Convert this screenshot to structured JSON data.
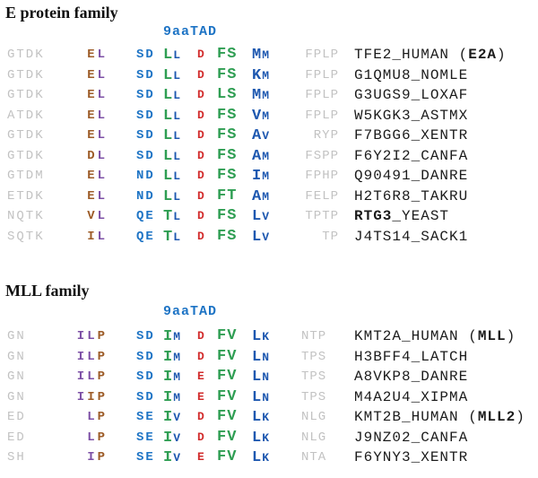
{
  "palette": {
    "gray": "#c2c2c2",
    "brown": "#9d5c28",
    "purple": "#7c4fa5",
    "blue": "#1e74c5",
    "navy": "#1e58b0",
    "green": "#2f9e53",
    "red": "#d22c2c",
    "ink": "#1b1b1b"
  },
  "sections": [
    {
      "title": "E protein family",
      "tad_label": "9aaTAD",
      "rows": [
        {
          "flank_left": "GTDK",
          "pre": [
            [
              "E",
              "brown"
            ],
            [
              "L",
              "purple"
            ]
          ],
          "polar": "SD",
          "h1": [
            "L",
            "L"
          ],
          "acid": "D",
          "h2": "FS",
          "h3": [
            "M",
            "M"
          ],
          "flank_right": "FPLP",
          "name": [
            [
              "TFE2_HUMAN (",
              false
            ],
            [
              "E2A",
              true
            ],
            [
              ")",
              false
            ]
          ]
        },
        {
          "flank_left": "GTDK",
          "pre": [
            [
              "E",
              "brown"
            ],
            [
              "L",
              "purple"
            ]
          ],
          "polar": "SD",
          "h1": [
            "L",
            "L"
          ],
          "acid": "D",
          "h2": "FS",
          "h3": [
            "K",
            "M"
          ],
          "flank_right": "FPLP",
          "name": [
            [
              "G1QMU8_NOMLE",
              false
            ]
          ]
        },
        {
          "flank_left": "GTDK",
          "pre": [
            [
              "E",
              "brown"
            ],
            [
              "L",
              "purple"
            ]
          ],
          "polar": "SD",
          "h1": [
            "L",
            "L"
          ],
          "acid": "D",
          "h2": "LS",
          "h3": [
            "M",
            "M"
          ],
          "flank_right": "FPLP",
          "name": [
            [
              "G3UGS9_LOXAF",
              false
            ]
          ]
        },
        {
          "flank_left": "ATDK",
          "pre": [
            [
              "E",
              "brown"
            ],
            [
              "L",
              "purple"
            ]
          ],
          "polar": "SD",
          "h1": [
            "L",
            "L"
          ],
          "acid": "D",
          "h2": "FS",
          "h3": [
            "V",
            "M"
          ],
          "flank_right": "FPLP",
          "name": [
            [
              "W5KGK3_ASTMX",
              false
            ]
          ]
        },
        {
          "flank_left": "GTDK",
          "pre": [
            [
              "E",
              "brown"
            ],
            [
              "L",
              "purple"
            ]
          ],
          "polar": "SD",
          "h1": [
            "L",
            "L"
          ],
          "acid": "D",
          "h2": "FS",
          "h3": [
            "A",
            "V"
          ],
          "flank_right": "RYP",
          "name": [
            [
              "F7BGG6_XENTR",
              false
            ]
          ]
        },
        {
          "flank_left": "GTDK",
          "pre": [
            [
              "D",
              "brown"
            ],
            [
              "L",
              "purple"
            ]
          ],
          "polar": "SD",
          "h1": [
            "L",
            "L"
          ],
          "acid": "D",
          "h2": "FS",
          "h3": [
            "A",
            "M"
          ],
          "flank_right": "FSPP",
          "name": [
            [
              "F6Y2I2_CANFA",
              false
            ]
          ]
        },
        {
          "flank_left": "GTDM",
          "pre": [
            [
              "E",
              "brown"
            ],
            [
              "L",
              "purple"
            ]
          ],
          "polar": "ND",
          "h1": [
            "L",
            "L"
          ],
          "acid": "D",
          "h2": "FS",
          "h3": [
            "I",
            "M"
          ],
          "flank_right": "FPHP",
          "name": [
            [
              "Q90491_DANRE",
              false
            ]
          ]
        },
        {
          "flank_left": "ETDK",
          "pre": [
            [
              "E",
              "brown"
            ],
            [
              "L",
              "purple"
            ]
          ],
          "polar": "ND",
          "h1": [
            "L",
            "L"
          ],
          "acid": "D",
          "h2": "FT",
          "h3": [
            "A",
            "M"
          ],
          "flank_right": "FELP",
          "name": [
            [
              "H2T6R8_TAKRU",
              false
            ]
          ]
        },
        {
          "flank_left": "NQTK",
          "pre": [
            [
              "V",
              "brown"
            ],
            [
              "L",
              "purple"
            ]
          ],
          "polar": "QE",
          "h1": [
            "T",
            "L"
          ],
          "acid": "D",
          "h2": "FS",
          "h3": [
            "L",
            "V"
          ],
          "flank_right": "TPTP",
          "name": [
            [
              "RTG3",
              true
            ],
            [
              "_YEAST",
              false
            ]
          ]
        },
        {
          "flank_left": "SQTK",
          "pre": [
            [
              "I",
              "brown"
            ],
            [
              "L",
              "purple"
            ]
          ],
          "polar": "QE",
          "h1": [
            "T",
            "L"
          ],
          "acid": "D",
          "h2": "FS",
          "h3": [
            "L",
            "V"
          ],
          "flank_right": "TP",
          "name": [
            [
              "J4TS14_SACK1",
              false
            ]
          ]
        }
      ]
    },
    {
      "title": "MLL family",
      "tad_label": "9aaTAD",
      "rows": [
        {
          "flank_left": "GN",
          "pre": [
            [
              "I",
              "purple"
            ],
            [
              "L",
              "purple"
            ],
            [
              "P",
              "brown"
            ]
          ],
          "polar": "SD",
          "h1": [
            "I",
            "M"
          ],
          "acid": "D",
          "h2": "FV",
          "h3": [
            "L",
            "K"
          ],
          "flank_right": "NTP",
          "name": [
            [
              "KMT2A_HUMAN (",
              false
            ],
            [
              "MLL",
              true
            ],
            [
              ")",
              false
            ]
          ]
        },
        {
          "flank_left": "GN",
          "pre": [
            [
              "I",
              "purple"
            ],
            [
              "L",
              "purple"
            ],
            [
              "P",
              "brown"
            ]
          ],
          "polar": "SD",
          "h1": [
            "I",
            "M"
          ],
          "acid": "D",
          "h2": "FV",
          "h3": [
            "L",
            "N"
          ],
          "flank_right": "TPS",
          "name": [
            [
              "H3BFF4_LATCH",
              false
            ]
          ]
        },
        {
          "flank_left": "GN",
          "pre": [
            [
              "I",
              "purple"
            ],
            [
              "L",
              "purple"
            ],
            [
              "P",
              "brown"
            ]
          ],
          "polar": "SD",
          "h1": [
            "I",
            "M"
          ],
          "acid": "E",
          "h2": "FV",
          "h3": [
            "L",
            "N"
          ],
          "flank_right": "TPS",
          "name": [
            [
              "A8VKP8_DANRE",
              false
            ]
          ]
        },
        {
          "flank_left": "GN",
          "pre": [
            [
              "I",
              "purple"
            ],
            [
              "I",
              "brown"
            ],
            [
              "P",
              "brown"
            ]
          ],
          "polar": "SD",
          "h1": [
            "I",
            "M"
          ],
          "acid": "E",
          "h2": "FV",
          "h3": [
            "L",
            "N"
          ],
          "flank_right": "TPS",
          "name": [
            [
              "M4A2U4_XIPMA",
              false
            ]
          ]
        },
        {
          "flank_left": "ED",
          "pre": [
            [
              "L",
              "purple"
            ],
            [
              "P",
              "brown"
            ]
          ],
          "polar": "SE",
          "h1": [
            "I",
            "V"
          ],
          "acid": "D",
          "h2": "FV",
          "h3": [
            "L",
            "K"
          ],
          "flank_right": "NLG",
          "name": [
            [
              "KMT2B_HUMAN (",
              false
            ],
            [
              "MLL2",
              true
            ],
            [
              ")",
              false
            ]
          ]
        },
        {
          "flank_left": "ED",
          "pre": [
            [
              "L",
              "purple"
            ],
            [
              "P",
              "brown"
            ]
          ],
          "polar": "SE",
          "h1": [
            "I",
            "V"
          ],
          "acid": "D",
          "h2": "FV",
          "h3": [
            "L",
            "K"
          ],
          "flank_right": "NLG",
          "name": [
            [
              "J9NZ02_CANFA",
              false
            ]
          ]
        },
        {
          "flank_left": "SH",
          "pre": [
            [
              "I",
              "purple"
            ],
            [
              "P",
              "brown"
            ]
          ],
          "polar": "SE",
          "h1": [
            "I",
            "V"
          ],
          "acid": "E",
          "h2": "FV",
          "h3": [
            "L",
            "K"
          ],
          "flank_right": "NTA",
          "name": [
            [
              "F6YNY3_XENTR",
              false
            ]
          ]
        }
      ]
    }
  ]
}
